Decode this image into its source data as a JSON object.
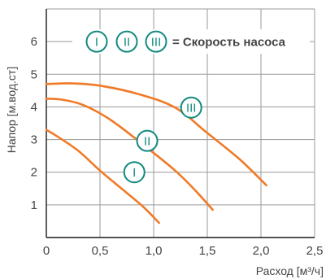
{
  "chart_data": {
    "type": "line",
    "xlabel": "Расход [м³/ч]",
    "ylabel": "Напор [м.вод.ст]",
    "xlim": [
      0,
      2.5
    ],
    "ylim": [
      0,
      7
    ],
    "x_ticks": [
      {
        "value": 0,
        "label": "0"
      },
      {
        "value": 0.5,
        "label": "0,5"
      },
      {
        "value": 1.0,
        "label": "1,0"
      },
      {
        "value": 1.5,
        "label": "1,5"
      },
      {
        "value": 2.0,
        "label": "2,0"
      },
      {
        "value": 2.5,
        "label": "2,5"
      }
    ],
    "y_ticks": [
      {
        "value": 1,
        "label": "1"
      },
      {
        "value": 2,
        "label": "2"
      },
      {
        "value": 3,
        "label": "3"
      },
      {
        "value": 4,
        "label": "4"
      },
      {
        "value": 5,
        "label": "5"
      },
      {
        "value": 6,
        "label": "6"
      }
    ],
    "grid": true,
    "series": [
      {
        "name": "I",
        "color": "#f07a27",
        "label_at": [
          0.82,
          2.0
        ],
        "points": [
          [
            0,
            3.3
          ],
          [
            0.1,
            3.1
          ],
          [
            0.3,
            2.65
          ],
          [
            0.5,
            2.05
          ],
          [
            0.7,
            1.5
          ],
          [
            0.9,
            0.95
          ],
          [
            1.05,
            0.45
          ]
        ]
      },
      {
        "name": "II",
        "color": "#f07a27",
        "label_at": [
          0.94,
          2.96
        ],
        "points": [
          [
            0,
            4.25
          ],
          [
            0.15,
            4.22
          ],
          [
            0.35,
            4.05
          ],
          [
            0.6,
            3.6
          ],
          [
            0.9,
            2.85
          ],
          [
            1.2,
            2.05
          ],
          [
            1.4,
            1.4
          ],
          [
            1.55,
            0.85
          ]
        ]
      },
      {
        "name": "III",
        "color": "#f07a27",
        "label_at": [
          1.35,
          3.98
        ],
        "points": [
          [
            0,
            4.7
          ],
          [
            0.25,
            4.72
          ],
          [
            0.5,
            4.65
          ],
          [
            0.85,
            4.4
          ],
          [
            1.2,
            3.98
          ],
          [
            1.5,
            3.2
          ],
          [
            1.8,
            2.4
          ],
          [
            2.05,
            1.6
          ]
        ]
      }
    ],
    "legend": {
      "placement": "top",
      "symbols": [
        "I",
        "II",
        "III"
      ],
      "text": "= Скорость насоса"
    },
    "colors": {
      "curve": "#f07a27",
      "marker": "#138a7f",
      "grid": "#9a9a9a",
      "axis": "#1a1a1a",
      "text": "#444444"
    }
  }
}
